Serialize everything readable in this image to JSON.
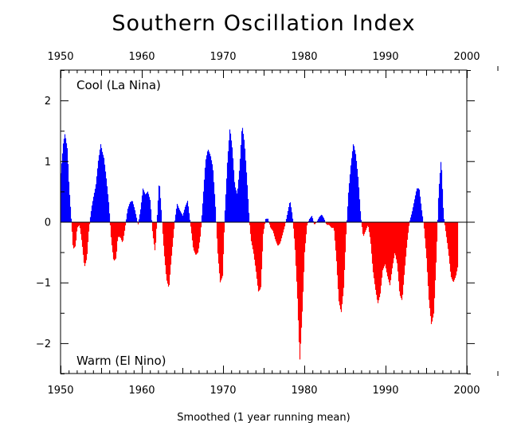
{
  "chart_data": {
    "type": "area",
    "title": "Southern Oscillation Index",
    "xlabel": "Smoothed (1 year running mean)",
    "ylabel": "",
    "xlim": [
      1950,
      2000
    ],
    "ylim": [
      -2.5,
      2.5
    ],
    "x_ticks": [
      "1950",
      "1960",
      "1970",
      "1980",
      "1990",
      "2000"
    ],
    "y_ticks": [
      "2",
      "1",
      "0",
      "−1",
      "−2"
    ],
    "y_tick_values": [
      2,
      1,
      0,
      -1,
      -2
    ],
    "annotation_top": "Cool (La Nina)",
    "annotation_bottom": "Warm (El Nino)",
    "positive_color": "#0000ff",
    "negative_color": "#ff0000",
    "grid": false,
    "series": [
      {
        "x": [
          1950.0,
          1950.3,
          1950.5,
          1950.8,
          1951.0,
          1951.3,
          1951.5,
          1951.8,
          1952.0,
          1952.3,
          1952.6,
          1952.9,
          1953.2,
          1953.4,
          1953.6,
          1953.8,
          1954.0,
          1954.3,
          1954.6,
          1954.9,
          1955.1,
          1955.3,
          1955.6,
          1955.9,
          1956.2,
          1956.5,
          1956.8,
          1957.0,
          1957.3,
          1957.6,
          1957.9,
          1958.2,
          1958.5,
          1958.8,
          1959.1,
          1959.5,
          1959.8,
          1960.1,
          1960.4,
          1960.7,
          1961.0,
          1961.3,
          1961.6,
          1961.9,
          1962.1,
          1962.4,
          1962.7,
          1963.0,
          1963.3,
          1963.5,
          1963.8,
          1964.0,
          1964.3,
          1964.6,
          1965.0,
          1965.3,
          1965.6,
          1966.0,
          1966.3,
          1966.6,
          1966.9,
          1967.2,
          1967.5,
          1967.8,
          1968.1,
          1968.4,
          1968.7,
          1969.0,
          1969.3,
          1969.6,
          1969.9,
          1970.2,
          1970.5,
          1970.8,
          1971.1,
          1971.4,
          1971.7,
          1972.0,
          1972.3,
          1972.6,
          1972.9,
          1973.2,
          1973.4,
          1973.7,
          1974.0,
          1974.3,
          1974.6,
          1974.9,
          1975.2,
          1975.5,
          1975.8,
          1976.1,
          1976.4,
          1976.7,
          1977.0,
          1977.3,
          1977.6,
          1977.9,
          1978.2,
          1978.5,
          1978.8,
          1979.1,
          1979.4,
          1979.7,
          1980.0,
          1980.3,
          1980.6,
          1980.9,
          1981.2,
          1981.5,
          1981.8,
          1982.1,
          1982.4,
          1982.7,
          1983.0,
          1983.3,
          1983.6,
          1983.9,
          1984.2,
          1984.5,
          1984.8,
          1985.1,
          1985.4,
          1985.7,
          1986.0,
          1986.3,
          1986.6,
          1986.9,
          1987.2,
          1987.5,
          1987.8,
          1988.1,
          1988.4,
          1988.7,
          1989.0,
          1989.3,
          1989.6,
          1989.9,
          1990.2,
          1990.5,
          1990.8,
          1991.1,
          1991.4,
          1991.7,
          1992.0,
          1992.3,
          1992.6,
          1992.9,
          1993.2,
          1993.5,
          1993.8,
          1994.1,
          1994.4,
          1994.7,
          1995.0,
          1995.3,
          1995.6,
          1995.9,
          1996.2,
          1996.5,
          1996.8,
          1997.1,
          1997.4,
          1997.7,
          1998.0,
          1998.3,
          1998.6,
          1998.9
        ],
        "y": [
          0.8,
          1.3,
          1.45,
          1.2,
          0.6,
          0.0,
          -0.45,
          -0.4,
          -0.1,
          -0.05,
          -0.35,
          -0.75,
          -0.6,
          -0.2,
          0.05,
          0.25,
          0.4,
          0.6,
          1.0,
          1.28,
          1.15,
          1.05,
          0.7,
          0.3,
          -0.3,
          -0.65,
          -0.6,
          -0.25,
          -0.25,
          -0.35,
          -0.1,
          0.2,
          0.32,
          0.35,
          0.2,
          -0.05,
          0.2,
          0.55,
          0.45,
          0.5,
          0.35,
          -0.2,
          -0.5,
          0.2,
          0.7,
          0.1,
          -0.5,
          -0.95,
          -1.1,
          -0.75,
          -0.3,
          0.0,
          0.3,
          0.2,
          0.1,
          0.25,
          0.35,
          -0.1,
          -0.45,
          -0.55,
          -0.5,
          -0.2,
          0.4,
          1.0,
          1.2,
          1.1,
          0.9,
          0.3,
          -0.5,
          -1.0,
          -0.9,
          0.2,
          1.0,
          1.55,
          1.2,
          0.6,
          0.45,
          0.9,
          1.6,
          1.3,
          0.7,
          0.0,
          -0.3,
          -0.5,
          -0.8,
          -1.15,
          -1.1,
          -0.2,
          0.05,
          0.05,
          -0.1,
          -0.15,
          -0.3,
          -0.4,
          -0.35,
          -0.2,
          -0.05,
          0.15,
          0.35,
          0.1,
          -0.4,
          -1.2,
          -2.3,
          -1.5,
          -0.5,
          -0.05,
          0.05,
          0.1,
          -0.05,
          0.0,
          0.08,
          0.12,
          0.05,
          -0.05,
          -0.05,
          -0.1,
          -0.1,
          -0.6,
          -1.3,
          -1.5,
          -1.1,
          -0.2,
          0.5,
          0.95,
          1.3,
          1.1,
          0.7,
          0.1,
          -0.25,
          -0.15,
          -0.05,
          -0.3,
          -0.8,
          -1.1,
          -1.35,
          -1.2,
          -0.8,
          -0.7,
          -0.9,
          -1.05,
          -0.75,
          -0.5,
          -0.7,
          -1.2,
          -1.3,
          -0.8,
          -0.35,
          0.0,
          0.15,
          0.35,
          0.55,
          0.55,
          0.2,
          -0.1,
          -0.6,
          -1.3,
          -1.7,
          -1.5,
          -0.6,
          0.5,
          1.05,
          0.1,
          -0.2,
          -0.5,
          -0.9,
          -1.0,
          -0.9,
          -0.7
        ]
      }
    ]
  }
}
